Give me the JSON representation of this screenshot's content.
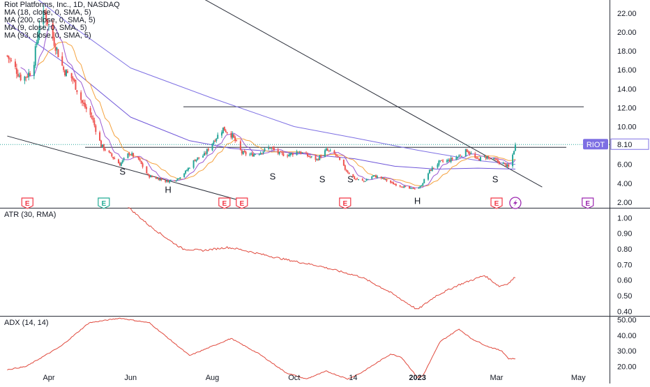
{
  "chart_data": [
    {
      "type": "candlestick",
      "title": "Riot Platforms, Inc., 1D, NASDAQ",
      "ticker": "RIOT",
      "last_price_label": "8.10",
      "last_price": 8.1,
      "indicators": [
        "MA (18, close, 0, SMA, 5)",
        "MA (200, close, 0, SMA, 5)",
        "MA (9, close, 0, SMA, 5)",
        "MA (93, close, 0, SMA, 5)"
      ],
      "y_ticks": [
        "22.00",
        "20.00",
        "18.00",
        "16.00",
        "14.00",
        "12.00",
        "10.00",
        "6.00",
        "4.00",
        "2.00"
      ],
      "y_tick_values": [
        22,
        20,
        18,
        16,
        14,
        12,
        10,
        6,
        4,
        2
      ],
      "ylim": [
        1.4,
        23.4
      ],
      "x_ticks": [
        "Apr",
        "Jun",
        "Aug",
        "Oct",
        "14",
        "2023",
        "Mar",
        "May"
      ],
      "x_tick_dates": [
        "2022-04-01",
        "2022-06-01",
        "2022-08-01",
        "2022-10-01",
        "2022-11-14",
        "2023-01-01",
        "2023-03-01",
        "2023-05-01"
      ],
      "pattern_labels": [
        {
          "text": "S",
          "date": "2022-05-26",
          "price": 5.2
        },
        {
          "text": "H",
          "date": "2022-06-29",
          "price": 3.3
        },
        {
          "text": "S",
          "date": "2022-09-15",
          "price": 4.7
        },
        {
          "text": "S",
          "date": "2022-10-22",
          "price": 4.4
        },
        {
          "text": "S",
          "date": "2022-11-12",
          "price": 4.4
        },
        {
          "text": "H",
          "date": "2023-01-01",
          "price": 2.1
        },
        {
          "text": "S",
          "date": "2023-02-28",
          "price": 4.4
        }
      ],
      "horizontal_lines": [
        12.1,
        7.8
      ],
      "earnings_markers": [
        {
          "date": "2022-03-16",
          "label": "E",
          "kind": "earnings"
        },
        {
          "date": "2022-05-12",
          "label": "E",
          "kind": "earnings-positive"
        },
        {
          "date": "2022-08-10",
          "label": "E",
          "kind": "earnings"
        },
        {
          "date": "2022-08-23",
          "label": "E",
          "kind": "earnings"
        },
        {
          "date": "2022-11-08",
          "label": "E",
          "kind": "earnings"
        },
        {
          "date": "2023-03-01",
          "label": "E",
          "kind": "earnings"
        },
        {
          "date": "2023-03-15",
          "label": "",
          "kind": "event"
        },
        {
          "date": "2023-05-08",
          "label": "E",
          "kind": "upcoming"
        }
      ],
      "price_path": [
        [
          "2022-03-01",
          17.5
        ],
        [
          "2022-03-12",
          15.0
        ],
        [
          "2022-03-20",
          16.0
        ],
        [
          "2022-03-25",
          21.0
        ],
        [
          "2022-03-29",
          22.0
        ],
        [
          "2022-04-05",
          19.0
        ],
        [
          "2022-04-12",
          16.0
        ],
        [
          "2022-04-19",
          15.0
        ],
        [
          "2022-04-26",
          12.5
        ],
        [
          "2022-05-03",
          11.0
        ],
        [
          "2022-05-10",
          8.0
        ],
        [
          "2022-05-17",
          7.0
        ],
        [
          "2022-05-24",
          6.0
        ],
        [
          "2022-05-31",
          7.2
        ],
        [
          "2022-06-07",
          6.5
        ],
        [
          "2022-06-14",
          4.8
        ],
        [
          "2022-06-21",
          4.5
        ],
        [
          "2022-06-28",
          4.2
        ],
        [
          "2022-07-05",
          4.4
        ],
        [
          "2022-07-12",
          5.2
        ],
        [
          "2022-07-19",
          6.5
        ],
        [
          "2022-07-26",
          7.0
        ],
        [
          "2022-08-02",
          8.5
        ],
        [
          "2022-08-09",
          9.8
        ],
        [
          "2022-08-16",
          9.0
        ],
        [
          "2022-08-23",
          7.2
        ],
        [
          "2022-08-30",
          7.0
        ],
        [
          "2022-09-06",
          7.3
        ],
        [
          "2022-09-13",
          7.8
        ],
        [
          "2022-09-20",
          7.1
        ],
        [
          "2022-09-27",
          7.0
        ],
        [
          "2022-10-04",
          7.4
        ],
        [
          "2022-10-11",
          6.9
        ],
        [
          "2022-10-18",
          6.5
        ],
        [
          "2022-10-25",
          7.5
        ],
        [
          "2022-11-01",
          7.0
        ],
        [
          "2022-11-08",
          5.5
        ],
        [
          "2022-11-15",
          4.5
        ],
        [
          "2022-11-22",
          4.2
        ],
        [
          "2022-11-29",
          4.8
        ],
        [
          "2022-12-06",
          4.5
        ],
        [
          "2022-12-13",
          4.0
        ],
        [
          "2022-12-20",
          3.7
        ],
        [
          "2022-12-27",
          3.4
        ],
        [
          "2023-01-03",
          3.6
        ],
        [
          "2023-01-10",
          5.3
        ],
        [
          "2023-01-17",
          6.2
        ],
        [
          "2023-01-24",
          6.4
        ],
        [
          "2023-01-31",
          6.8
        ],
        [
          "2023-02-07",
          7.5
        ],
        [
          "2023-02-14",
          6.5
        ],
        [
          "2023-02-21",
          6.8
        ],
        [
          "2023-02-28",
          6.4
        ],
        [
          "2023-03-07",
          6.0
        ],
        [
          "2023-03-10",
          5.7
        ],
        [
          "2023-03-13",
          7.0
        ],
        [
          "2023-03-15",
          8.1
        ]
      ],
      "ma_200": [
        [
          "2022-03-01",
          26.0
        ],
        [
          "2022-04-15",
          21.0
        ],
        [
          "2022-06-01",
          16.2
        ],
        [
          "2022-08-01",
          13.0
        ],
        [
          "2022-10-01",
          10.0
        ],
        [
          "2022-11-15",
          8.8
        ],
        [
          "2023-01-01",
          7.5
        ],
        [
          "2023-02-15",
          6.4
        ],
        [
          "2023-03-15",
          6.0
        ]
      ],
      "ma_93": [
        [
          "2022-03-01",
          21.0
        ],
        [
          "2022-04-15",
          16.5
        ],
        [
          "2022-06-01",
          11.0
        ],
        [
          "2022-07-15",
          8.5
        ],
        [
          "2022-08-15",
          7.7
        ],
        [
          "2022-10-01",
          7.2
        ],
        [
          "2022-11-15",
          6.6
        ],
        [
          "2022-12-15",
          5.8
        ],
        [
          "2023-01-15",
          5.5
        ],
        [
          "2023-02-15",
          5.6
        ],
        [
          "2023-03-15",
          5.5
        ]
      ],
      "trendlines": [
        {
          "from": [
            "2022-03-01",
            9.0
          ],
          "to": [
            "2022-08-26",
            2.0
          ]
        },
        {
          "from": [
            "2022-06-24",
            26.0
          ],
          "to": [
            "2023-04-04",
            3.6
          ]
        }
      ],
      "series": [
        {
          "name": "MA (200, close, 0, SMA, 5)",
          "color": "#7d6fe3"
        },
        {
          "name": "MA (93, close, 0, SMA, 5)",
          "color": "#6f56d9"
        },
        {
          "name": "MA (18, close, 0, SMA, 5)",
          "color": "#f5a23e"
        },
        {
          "name": "MA (9, close, 0, SMA, 5)",
          "color": "#9b59d0"
        }
      ]
    },
    {
      "type": "line",
      "title": "ATR (30, RMA)",
      "y_ticks": [
        "1.00",
        "0.90",
        "0.80",
        "0.70",
        "0.60",
        "0.50",
        "0.40"
      ],
      "y_tick_values": [
        1.0,
        0.9,
        0.8,
        0.7,
        0.6,
        0.5,
        0.4
      ],
      "ylim": [
        0.37,
        1.06
      ],
      "series": [
        {
          "name": "ATR",
          "color": "#e0483c",
          "points": [
            [
              "2022-05-30",
              1.07
            ],
            [
              "2022-06-15",
              0.95
            ],
            [
              "2022-07-01",
              0.85
            ],
            [
              "2022-07-10",
              0.8
            ],
            [
              "2022-07-25",
              0.79
            ],
            [
              "2022-08-12",
              0.81
            ],
            [
              "2022-08-20",
              0.8
            ],
            [
              "2022-09-20",
              0.74
            ],
            [
              "2022-10-20",
              0.69
            ],
            [
              "2022-11-20",
              0.62
            ],
            [
              "2022-12-10",
              0.53
            ],
            [
              "2023-01-01",
              0.41
            ],
            [
              "2023-01-15",
              0.5
            ],
            [
              "2023-02-01",
              0.57
            ],
            [
              "2023-02-20",
              0.63
            ],
            [
              "2023-03-03",
              0.56
            ],
            [
              "2023-03-10",
              0.58
            ],
            [
              "2023-03-15",
              0.62
            ]
          ]
        }
      ]
    },
    {
      "type": "line",
      "title": "ADX (14, 14)",
      "y_ticks": [
        "50.00",
        "40.00",
        "30.00",
        "20.00"
      ],
      "y_tick_values": [
        50,
        40,
        30,
        20
      ],
      "ylim": [
        10,
        52
      ],
      "series": [
        {
          "name": "ADX",
          "color": "#e0483c",
          "points": [
            [
              "2022-03-01",
              18.0
            ],
            [
              "2022-03-15",
              20.0
            ],
            [
              "2022-04-10",
              33.0
            ],
            [
              "2022-05-01",
              48.0
            ],
            [
              "2022-05-24",
              51.0
            ],
            [
              "2022-06-15",
              48.0
            ],
            [
              "2022-07-15",
              27.0
            ],
            [
              "2022-08-15",
              38.0
            ],
            [
              "2022-09-05",
              28.0
            ],
            [
              "2022-09-25",
              16.0
            ],
            [
              "2022-10-10",
              12.0
            ],
            [
              "2022-10-25",
              17.0
            ],
            [
              "2022-11-10",
              12.0
            ],
            [
              "2022-11-20",
              16.0
            ],
            [
              "2022-12-12",
              28.0
            ],
            [
              "2022-12-20",
              26.0
            ],
            [
              "2023-01-01",
              13.0
            ],
            [
              "2023-01-05",
              14.0
            ],
            [
              "2023-01-18",
              36.0
            ],
            [
              "2023-02-01",
              44.0
            ],
            [
              "2023-02-10",
              38.0
            ],
            [
              "2023-02-22",
              33.0
            ],
            [
              "2023-03-05",
              30.0
            ],
            [
              "2023-03-10",
              25.0
            ],
            [
              "2023-03-15",
              25.0
            ]
          ]
        }
      ]
    }
  ],
  "colors": {
    "up": "#26a69a",
    "down": "#ef5350",
    "grid": "#e0e3eb",
    "axis_text": "#131722",
    "ticker_bg": "#7d6fe3",
    "price_label_bg": "#ffffff",
    "line_dark": "#2a2e39",
    "earnings_red": "#f23645",
    "earnings_green": "#22ab94",
    "upcoming": "#9c27b0"
  }
}
